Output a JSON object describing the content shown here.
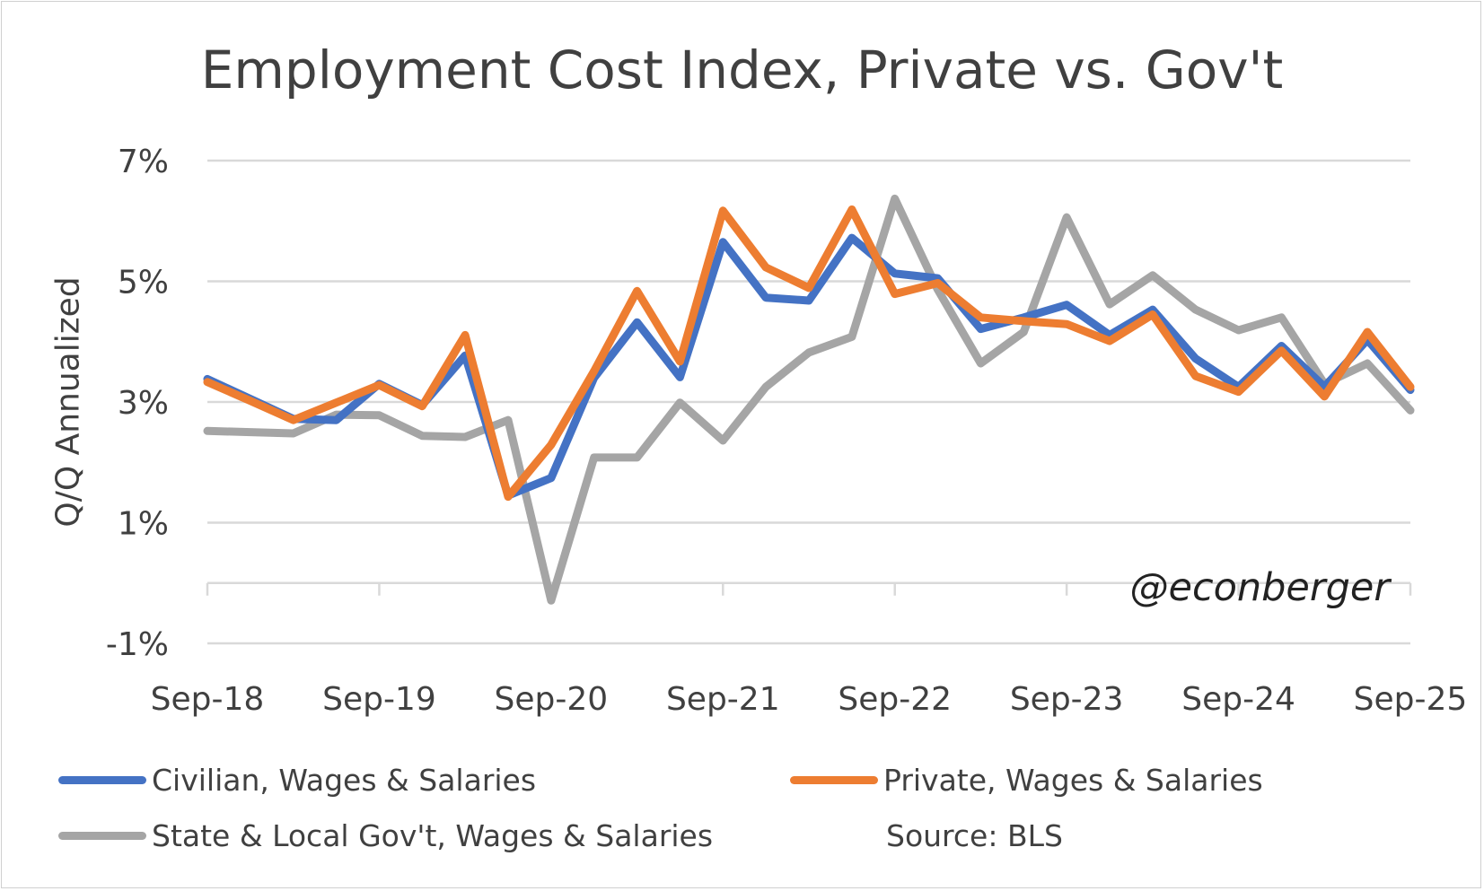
{
  "chart_data": {
    "type": "line",
    "title": "Employment Cost Index, Private vs. Gov't",
    "ylabel": "Q/Q Annualized",
    "xlabel": "",
    "ylim": [
      -1,
      7
    ],
    "yticks": [
      -1,
      1,
      3,
      5,
      7
    ],
    "ytick_labels": [
      "-1%",
      "1%",
      "3%",
      "5%",
      "7%"
    ],
    "x": [
      "Sep-18",
      "Dec-18",
      "Mar-19",
      "Jun-19",
      "Sep-19",
      "Dec-19",
      "Mar-20",
      "Jun-20",
      "Sep-20",
      "Dec-20",
      "Mar-21",
      "Jun-21",
      "Sep-21",
      "Dec-21",
      "Mar-22",
      "Jun-22",
      "Sep-22",
      "Dec-22",
      "Mar-23",
      "Jun-23",
      "Sep-23",
      "Dec-23",
      "Mar-24",
      "Jun-24",
      "Sep-24",
      "Dec-24",
      "Mar-25",
      "Jun-25",
      "Sep-25"
    ],
    "xtick_labels": [
      "Sep-18",
      "Sep-19",
      "Sep-20",
      "Sep-21",
      "Sep-22",
      "Sep-23",
      "Sep-24",
      "Sep-25"
    ],
    "grid": true,
    "legend_placement": "bottom",
    "series": [
      {
        "name": "Civilian, Wages & Salaries",
        "color": "#4472c4",
        "values": [
          3.38,
          3.05,
          2.72,
          2.7,
          3.3,
          2.95,
          3.77,
          1.45,
          1.74,
          3.4,
          4.32,
          3.41,
          5.65,
          4.73,
          4.68,
          5.72,
          5.13,
          5.05,
          4.21,
          4.4,
          4.61,
          4.11,
          4.53,
          3.72,
          3.25,
          3.93,
          3.25,
          4.03,
          3.2
        ]
      },
      {
        "name": "Private, Wages & Salaries",
        "color": "#ed7d31",
        "values": [
          3.33,
          3.02,
          2.7,
          2.99,
          3.28,
          2.93,
          4.11,
          1.43,
          2.29,
          3.51,
          4.84,
          3.67,
          6.17,
          5.23,
          4.89,
          6.19,
          4.79,
          4.97,
          4.4,
          4.34,
          4.29,
          4.01,
          4.45,
          3.43,
          3.17,
          3.85,
          3.09,
          4.16,
          3.25
        ]
      },
      {
        "name": "State & Local Gov't, Wages & Salaries",
        "color": "#a5a5a5",
        "values": [
          2.52,
          2.5,
          2.48,
          2.79,
          2.78,
          2.44,
          2.42,
          2.7,
          -0.29,
          2.08,
          2.08,
          2.99,
          2.36,
          3.25,
          3.82,
          4.08,
          6.37,
          4.86,
          3.64,
          4.16,
          6.06,
          4.62,
          5.1,
          4.53,
          4.19,
          4.4,
          3.3,
          3.64,
          2.86
        ]
      }
    ],
    "annotations": [
      "@econberger",
      "Source: BLS"
    ]
  }
}
